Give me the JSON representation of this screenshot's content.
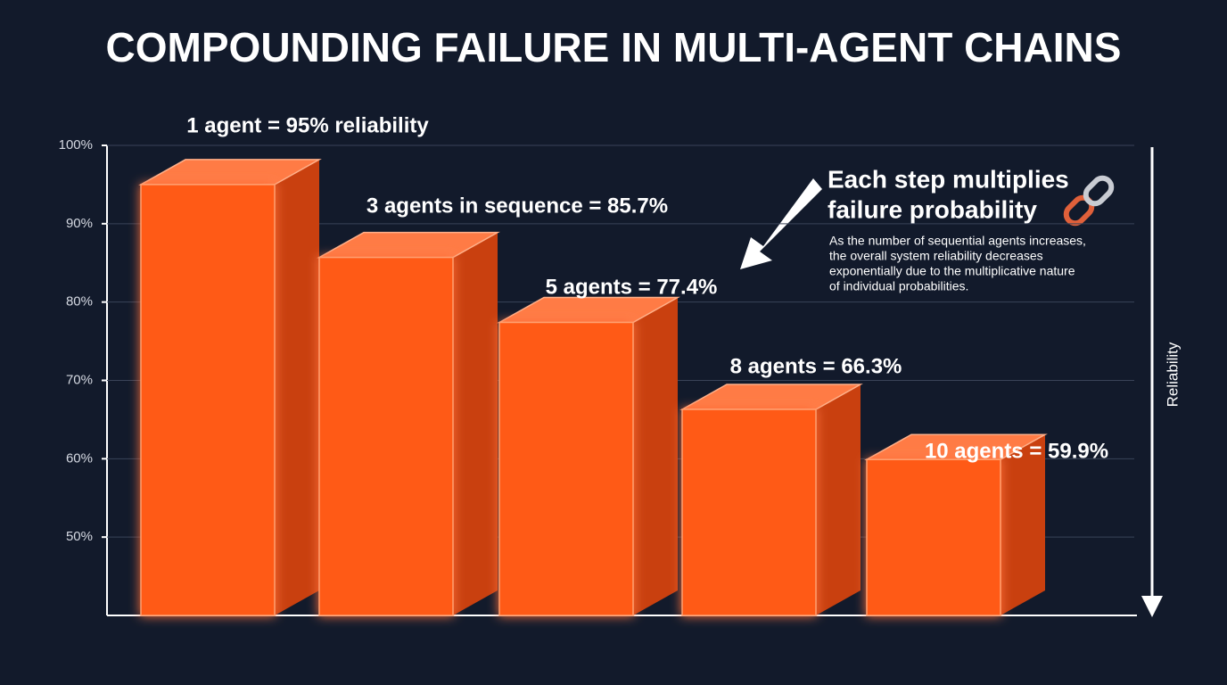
{
  "chart_data": {
    "type": "bar",
    "title": "COMPOUNDING FAILURE IN MULTI-AGENT CHAINS",
    "categories": [
      null,
      null,
      null,
      null,
      null
    ],
    "values": [
      95,
      85.7,
      77.4,
      66.3,
      59.9
    ],
    "value_labels": [
      "1 agent = 95% reliability",
      "3 agents in sequence = 85.7%",
      "5 agents = 77.4%",
      "8 agents = 66.3%",
      "10 agents = 59.9%"
    ],
    "color": "#ff5a14",
    "ylim": [
      40,
      100
    ],
    "yticks": [
      {
        "value": 50,
        "label": "50%"
      },
      {
        "value": 60,
        "label": "60%"
      },
      {
        "value": 70,
        "label": "70%"
      },
      {
        "value": 80,
        "label": "80%"
      },
      {
        "value": 90,
        "label": "90%"
      },
      {
        "value": 100,
        "label": "100%"
      }
    ],
    "grid": true,
    "y2_axis_label": "Reliability",
    "annotation": {
      "heading": [
        "Each step multiplies",
        "failure probability"
      ],
      "text": [
        "As the number of sequential agents increases,",
        "the overall system reliability decreases",
        "exponentially due to the multiplicative nature",
        "of individual probabilities."
      ]
    }
  }
}
